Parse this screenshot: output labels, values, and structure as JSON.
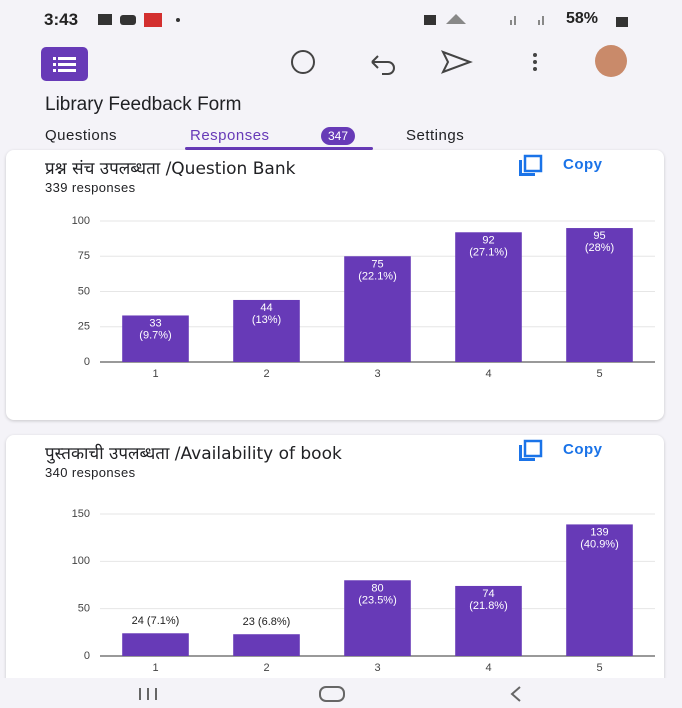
{
  "status_bar": {
    "time": "3:43",
    "battery": "58%"
  },
  "form_title": "Library Feedback Form",
  "tabs": [
    {
      "label": "Questions"
    },
    {
      "label": "Responses",
      "badge": 347
    },
    {
      "label": "Settings"
    }
  ],
  "chart_data": [
    {
      "type": "bar",
      "title": "प्रश्न संच उपलब्धता /Question Bank",
      "subtitle": "339 responses",
      "action": "Copy",
      "categories": [
        "1",
        "2",
        "3",
        "4",
        "5"
      ],
      "values": [
        33,
        44,
        75,
        92,
        95
      ],
      "value_labels": [
        "33\n(9.7%)",
        "44\n(13%)",
        "75\n(22.1%)",
        "92\n(27.1%)",
        "95\n(28%)"
      ],
      "color": "#673ab7",
      "ylim": [
        0,
        100
      ],
      "yticks": [
        0,
        25,
        50,
        75,
        100
      ],
      "grid": true
    },
    {
      "type": "bar",
      "title": "पुस्तकाची उपलब्धता /Availability of book",
      "subtitle": "340 responses",
      "action": "Copy",
      "categories": [
        "1",
        "2",
        "3",
        "4",
        "5"
      ],
      "values": [
        24,
        23,
        80,
        74,
        139
      ],
      "value_labels": [
        "24 (7.1%)",
        "23 (6.8%)",
        "80\n(23.5%)",
        "74\n(21.8%)",
        "139\n(40.9%)"
      ],
      "color": "#673ab7",
      "ylim": [
        0,
        150
      ],
      "yticks": [
        0,
        50,
        100,
        150
      ],
      "grid": true
    }
  ]
}
